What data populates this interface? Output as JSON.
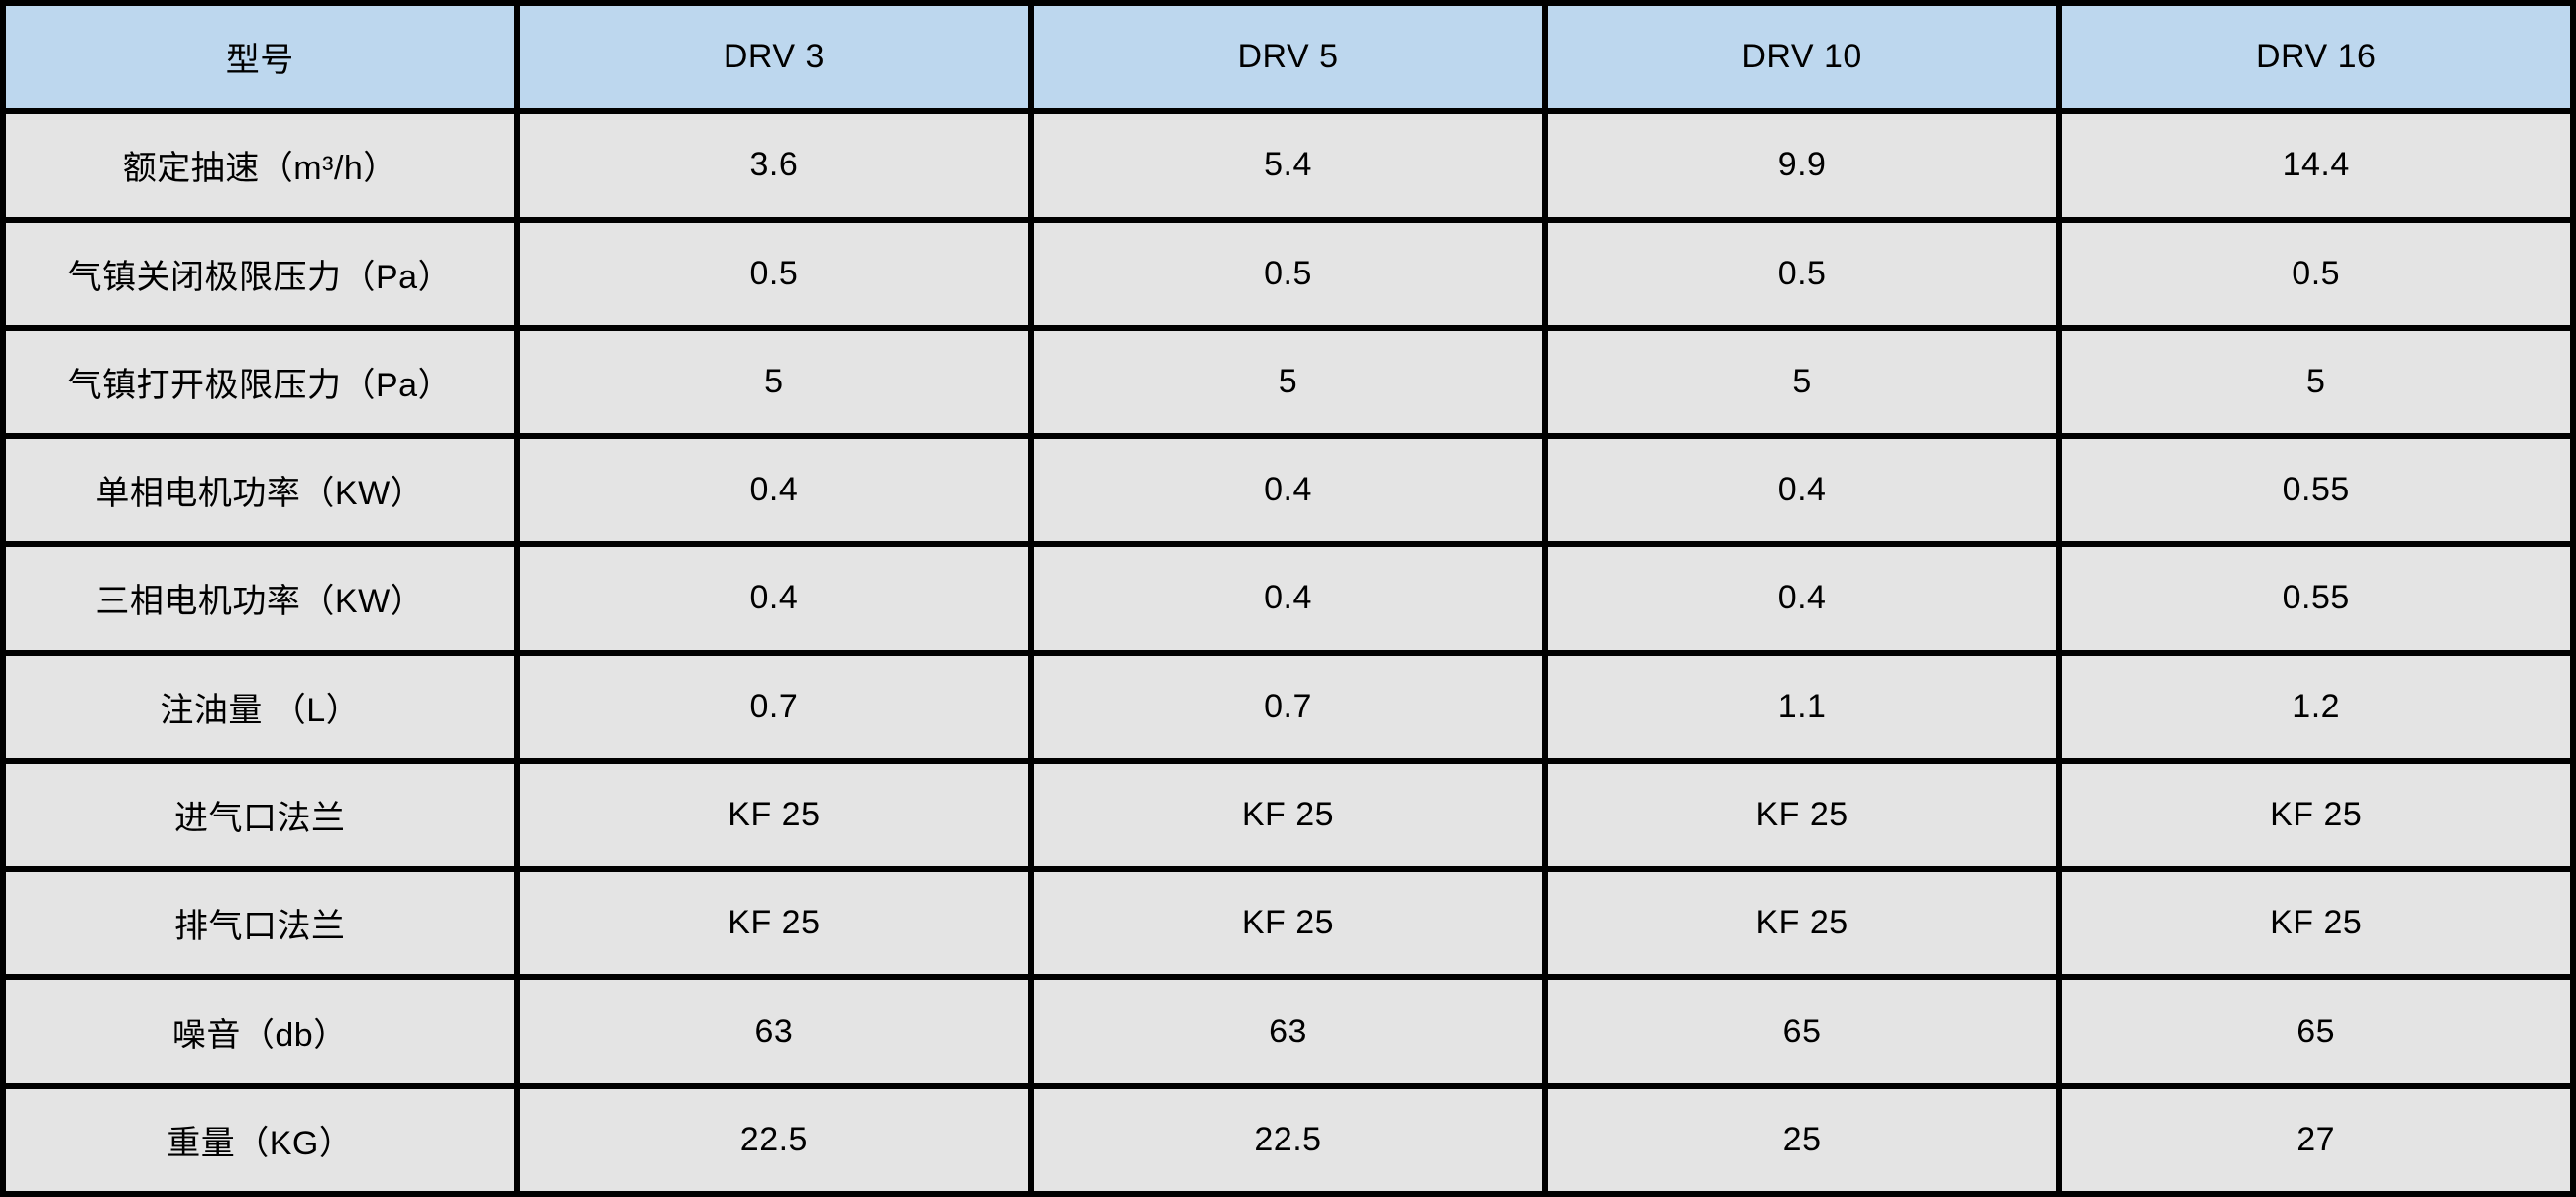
{
  "table": {
    "header": {
      "label": "型号",
      "models": [
        "DRV 3",
        "DRV 5",
        "DRV 10",
        "DRV 16"
      ]
    },
    "rows": [
      {
        "label": "额定抽速（m³/h）",
        "values": [
          "3.6",
          "5.4",
          "9.9",
          "14.4"
        ]
      },
      {
        "label": "气镇关闭极限压力（Pa）",
        "values": [
          "0.5",
          "0.5",
          "0.5",
          "0.5"
        ]
      },
      {
        "label": "气镇打开极限压力（Pa）",
        "values": [
          "5",
          "5",
          "5",
          "5"
        ]
      },
      {
        "label": "单相电机功率（KW）",
        "values": [
          "0.4",
          "0.4",
          "0.4",
          "0.55"
        ]
      },
      {
        "label": "三相电机功率（KW）",
        "values": [
          "0.4",
          "0.4",
          "0.4",
          "0.55"
        ]
      },
      {
        "label": "注油量 （L）",
        "values": [
          "0.7",
          "0.7",
          "1.1",
          "1.2"
        ]
      },
      {
        "label": "进气口法兰",
        "values": [
          "KF 25",
          "KF 25",
          "KF 25",
          "KF 25"
        ]
      },
      {
        "label": "排气口法兰",
        "values": [
          "KF 25",
          "KF 25",
          "KF 25",
          "KF 25"
        ]
      },
      {
        "label": "噪音（db）",
        "values": [
          "63",
          "63",
          "65",
          "65"
        ]
      },
      {
        "label": "重量（KG）",
        "values": [
          "22.5",
          "22.5",
          "25",
          "27"
        ]
      }
    ]
  },
  "colors": {
    "header_bg": "#BDD7EE",
    "row_bg": "#E4E4E4",
    "border": "#000000",
    "text": "#000000"
  }
}
